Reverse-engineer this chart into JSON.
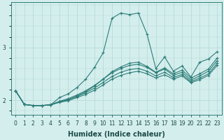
{
  "xlabel": "Humidex (Indice chaleur)",
  "ylabel": "",
  "bg_color": "#d4eeed",
  "grid_color": "#b0d8d4",
  "line_color": "#2d7d78",
  "x_values": [
    0,
    1,
    2,
    3,
    4,
    5,
    6,
    7,
    8,
    9,
    10,
    11,
    12,
    13,
    14,
    15,
    16,
    17,
    18,
    19,
    20,
    21,
    22,
    23
  ],
  "series": [
    [
      2.18,
      1.92,
      1.9,
      1.9,
      1.91,
      1.98,
      2.03,
      2.1,
      2.18,
      2.28,
      2.4,
      2.52,
      2.6,
      2.66,
      2.68,
      2.62,
      2.52,
      2.59,
      2.47,
      2.53,
      2.38,
      2.46,
      2.55,
      2.75
    ],
    [
      2.18,
      1.92,
      1.9,
      1.9,
      1.91,
      1.97,
      2.01,
      2.07,
      2.14,
      2.23,
      2.34,
      2.45,
      2.53,
      2.58,
      2.6,
      2.55,
      2.46,
      2.53,
      2.43,
      2.49,
      2.35,
      2.42,
      2.5,
      2.7
    ],
    [
      2.18,
      1.92,
      1.9,
      1.9,
      1.91,
      1.96,
      1.99,
      2.05,
      2.11,
      2.19,
      2.29,
      2.4,
      2.47,
      2.52,
      2.55,
      2.5,
      2.42,
      2.48,
      2.4,
      2.46,
      2.33,
      2.39,
      2.47,
      2.66
    ],
    [
      2.18,
      1.92,
      1.9,
      1.9,
      1.92,
      1.97,
      2.01,
      2.08,
      2.16,
      2.27,
      2.4,
      2.54,
      2.63,
      2.7,
      2.72,
      2.64,
      2.53,
      2.61,
      2.5,
      2.57,
      2.42,
      2.5,
      2.59,
      2.8
    ],
    [
      2.18,
      1.92,
      1.9,
      1.9,
      1.91,
      2.05,
      2.12,
      2.24,
      2.4,
      2.62,
      2.9,
      3.55,
      3.65,
      3.62,
      3.65,
      3.25,
      2.6,
      2.82,
      2.55,
      2.65,
      2.44,
      2.72,
      2.78,
      2.92
    ]
  ],
  "yticks": [
    2,
    3
  ],
  "xticks": [
    0,
    1,
    2,
    3,
    4,
    5,
    6,
    7,
    8,
    9,
    10,
    11,
    12,
    13,
    14,
    15,
    16,
    17,
    18,
    19,
    20,
    21,
    22,
    23
  ],
  "ylim": [
    1.72,
    3.85
  ],
  "xlim": [
    -0.5,
    23.5
  ],
  "marker": "+",
  "markersize": 3.5,
  "linewidth": 0.8,
  "tick_fontsize": 5.5,
  "label_fontsize": 7
}
